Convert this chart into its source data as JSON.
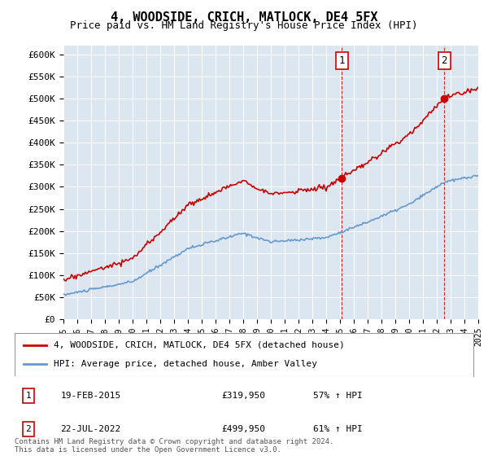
{
  "title": "4, WOODSIDE, CRICH, MATLOCK, DE4 5FX",
  "subtitle": "Price paid vs. HM Land Registry's House Price Index (HPI)",
  "hpi_label": "HPI: Average price, detached house, Amber Valley",
  "property_label": "4, WOODSIDE, CRICH, MATLOCK, DE4 5FX (detached house)",
  "property_color": "#cc0000",
  "hpi_color": "#6699cc",
  "plot_bg_color": "#dce6f1",
  "ylim": [
    0,
    620000
  ],
  "yticks": [
    0,
    50000,
    100000,
    150000,
    200000,
    250000,
    300000,
    350000,
    400000,
    450000,
    500000,
    550000,
    600000
  ],
  "ytick_labels": [
    "£0",
    "£50K",
    "£100K",
    "£150K",
    "£200K",
    "£250K",
    "£300K",
    "£350K",
    "£400K",
    "£450K",
    "£500K",
    "£550K",
    "£600K"
  ],
  "sale1_date": "19-FEB-2015",
  "sale1_price": 319950,
  "sale1_hpi_text": "57% ↑ HPI",
  "sale1_year": 2015.12,
  "sale2_date": "22-JUL-2022",
  "sale2_price": 499950,
  "sale2_hpi_text": "61% ↑ HPI",
  "sale2_year": 2022.55,
  "footer": "Contains HM Land Registry data © Crown copyright and database right 2024.\nThis data is licensed under the Open Government Licence v3.0.",
  "xmin": 1995,
  "xmax": 2025
}
